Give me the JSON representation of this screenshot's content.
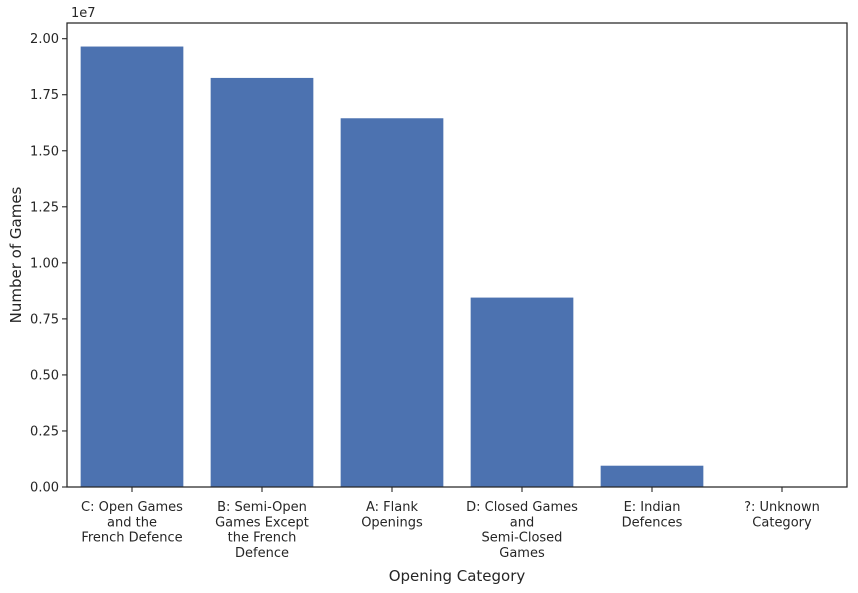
{
  "chart_data": {
    "type": "bar",
    "title": "",
    "xlabel": "Opening Category",
    "ylabel": "Number of Games",
    "y_offset_label": "1e7",
    "ylim": [
      0,
      2.07
    ],
    "yticks": [
      "0.00",
      "0.25",
      "0.50",
      "0.75",
      "1.00",
      "1.25",
      "1.50",
      "1.75",
      "2.00"
    ],
    "categories": [
      [
        "C: Open Games",
        "and the",
        "French Defence"
      ],
      [
        "B: Semi-Open",
        "Games Except",
        "the French",
        "Defence"
      ],
      [
        "A: Flank",
        "Openings"
      ],
      [
        "D: Closed Games",
        "and",
        "Semi-Closed",
        "Games"
      ],
      [
        "E: Indian",
        "Defences"
      ],
      [
        "?: Unknown",
        "Category"
      ]
    ],
    "values": [
      1.965,
      1.825,
      1.645,
      0.845,
      0.095,
      0.0
    ],
    "bar_color": "#4c72b0",
    "grid": false
  }
}
